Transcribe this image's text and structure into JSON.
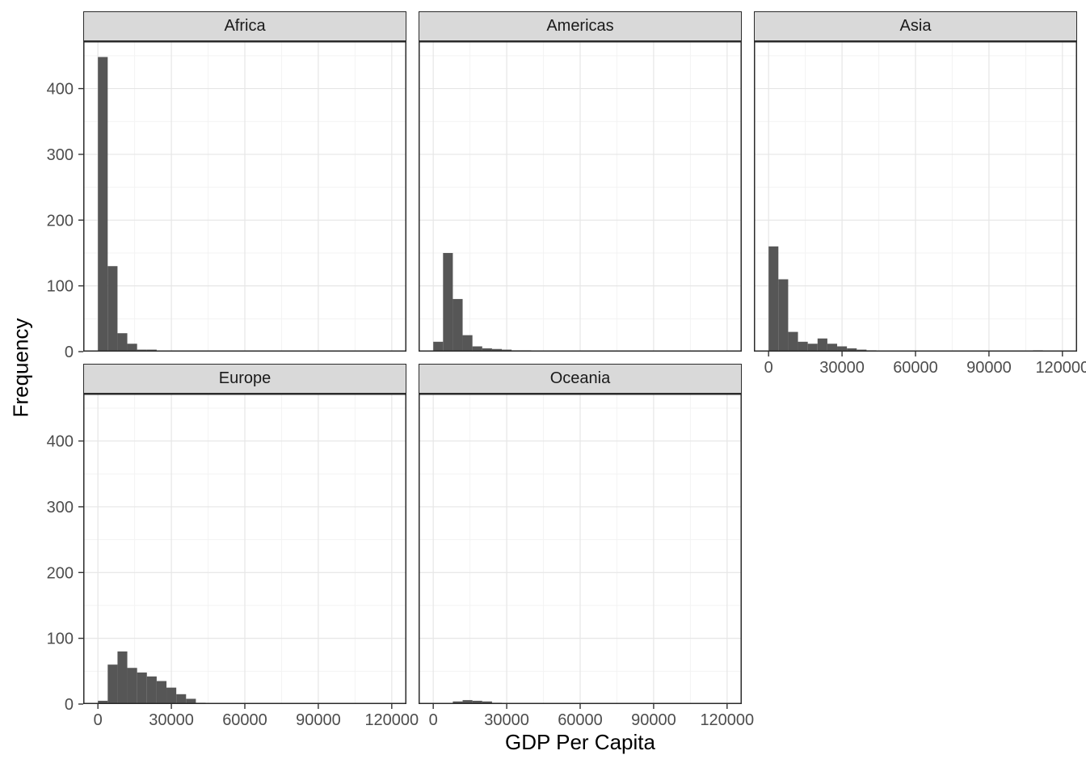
{
  "chart_data": {
    "type": "histogram",
    "title": "",
    "xlabel": "GDP Per Capita",
    "ylabel": "Frequency",
    "x_ticks": [
      0,
      30000,
      60000,
      90000,
      120000
    ],
    "y_ticks": [
      0,
      100,
      200,
      300,
      400
    ],
    "xlim": [
      -6000,
      126000
    ],
    "ylim": [
      0,
      472
    ],
    "bin_width": 4000,
    "bin_start": 0,
    "grid": true,
    "legend": "none",
    "facet_layout": {
      "columns": 3,
      "rows": 2
    },
    "facets": [
      {
        "label": "Africa",
        "counts": [
          448,
          130,
          28,
          12,
          3,
          3,
          1
        ]
      },
      {
        "label": "Americas",
        "counts": [
          15,
          150,
          80,
          25,
          8,
          5,
          4,
          3,
          2,
          2,
          1
        ]
      },
      {
        "label": "Asia",
        "counts": [
          160,
          110,
          30,
          15,
          12,
          20,
          12,
          8,
          5,
          3,
          2,
          1,
          1,
          0,
          0,
          0,
          0,
          0,
          0,
          0,
          0,
          0,
          0,
          0,
          0,
          0,
          0,
          2
        ]
      },
      {
        "label": "Europe",
        "counts": [
          5,
          60,
          80,
          55,
          48,
          42,
          35,
          25,
          15,
          8,
          2,
          1,
          1
        ]
      },
      {
        "label": "Oceania",
        "counts": [
          0,
          0,
          4,
          6,
          5,
          4,
          2,
          1,
          1,
          1
        ]
      }
    ],
    "colors": {
      "bar_fill": "#565656",
      "panel_border": "#2b2b2b",
      "strip_bg": "#d9d9d9",
      "strip_border": "#2b2b2b",
      "grid_major": "#e6e6e6",
      "grid_minor": "#f3f3f3",
      "tick_label": "#4d4d4d",
      "axis_title": "#000000",
      "tick_mark": "#333333"
    }
  }
}
